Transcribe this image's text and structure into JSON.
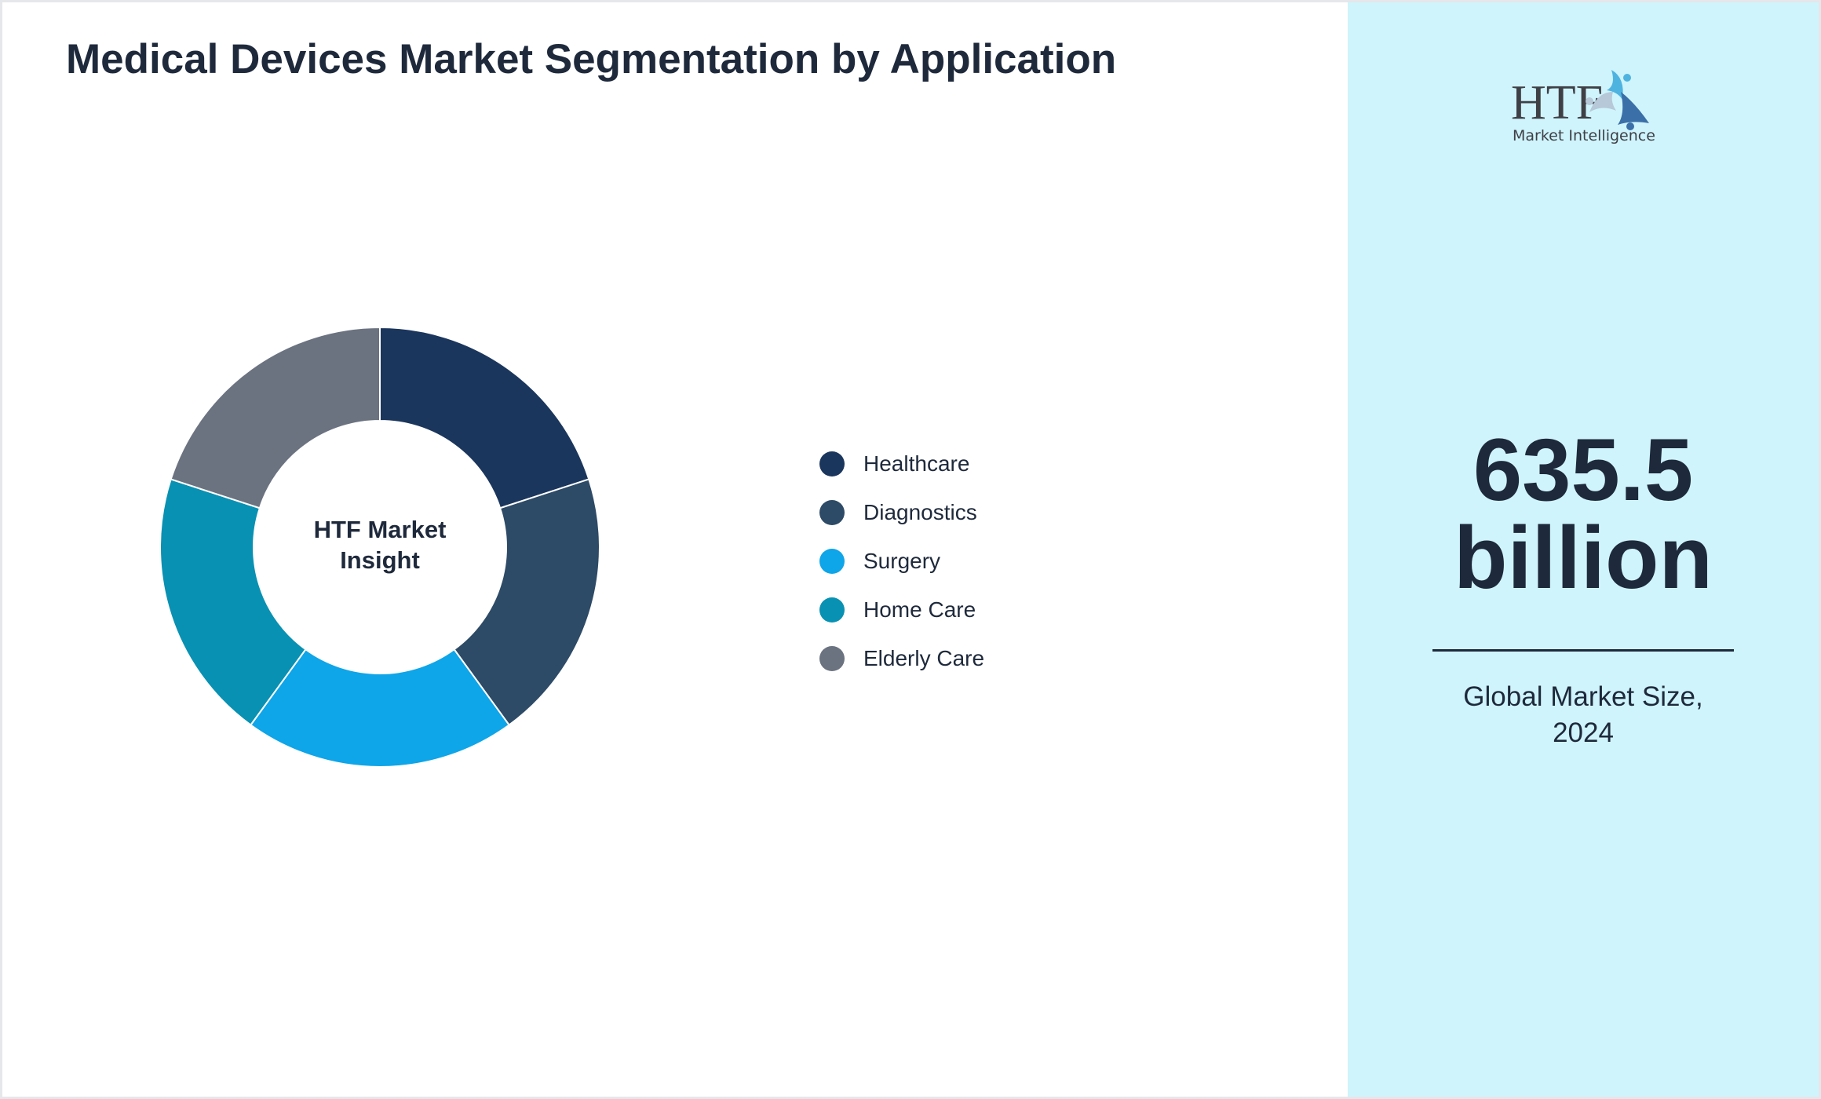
{
  "chart_data": {
    "type": "pie",
    "title": "Medical Devices Market Segmentation by Application",
    "center_label": "HTF Market Insight",
    "categories": [
      "Healthcare",
      "Diagnostics",
      "Surgery",
      "Home Care",
      "Elderly Care"
    ],
    "values": [
      20,
      20,
      20,
      20,
      20
    ],
    "colors": [
      "#1b365d",
      "#2d4a66",
      "#0ea5e9",
      "#0891b2",
      "#6b7280"
    ],
    "donut": true,
    "legend_placement": "right"
  },
  "sidebar": {
    "logo_text": "HTF Market Intelligence",
    "value_line1": "635.5",
    "value_line2": "billion",
    "caption_line1": "Global Market Size,",
    "caption_line2": "2024",
    "background": "#cff4fc"
  }
}
